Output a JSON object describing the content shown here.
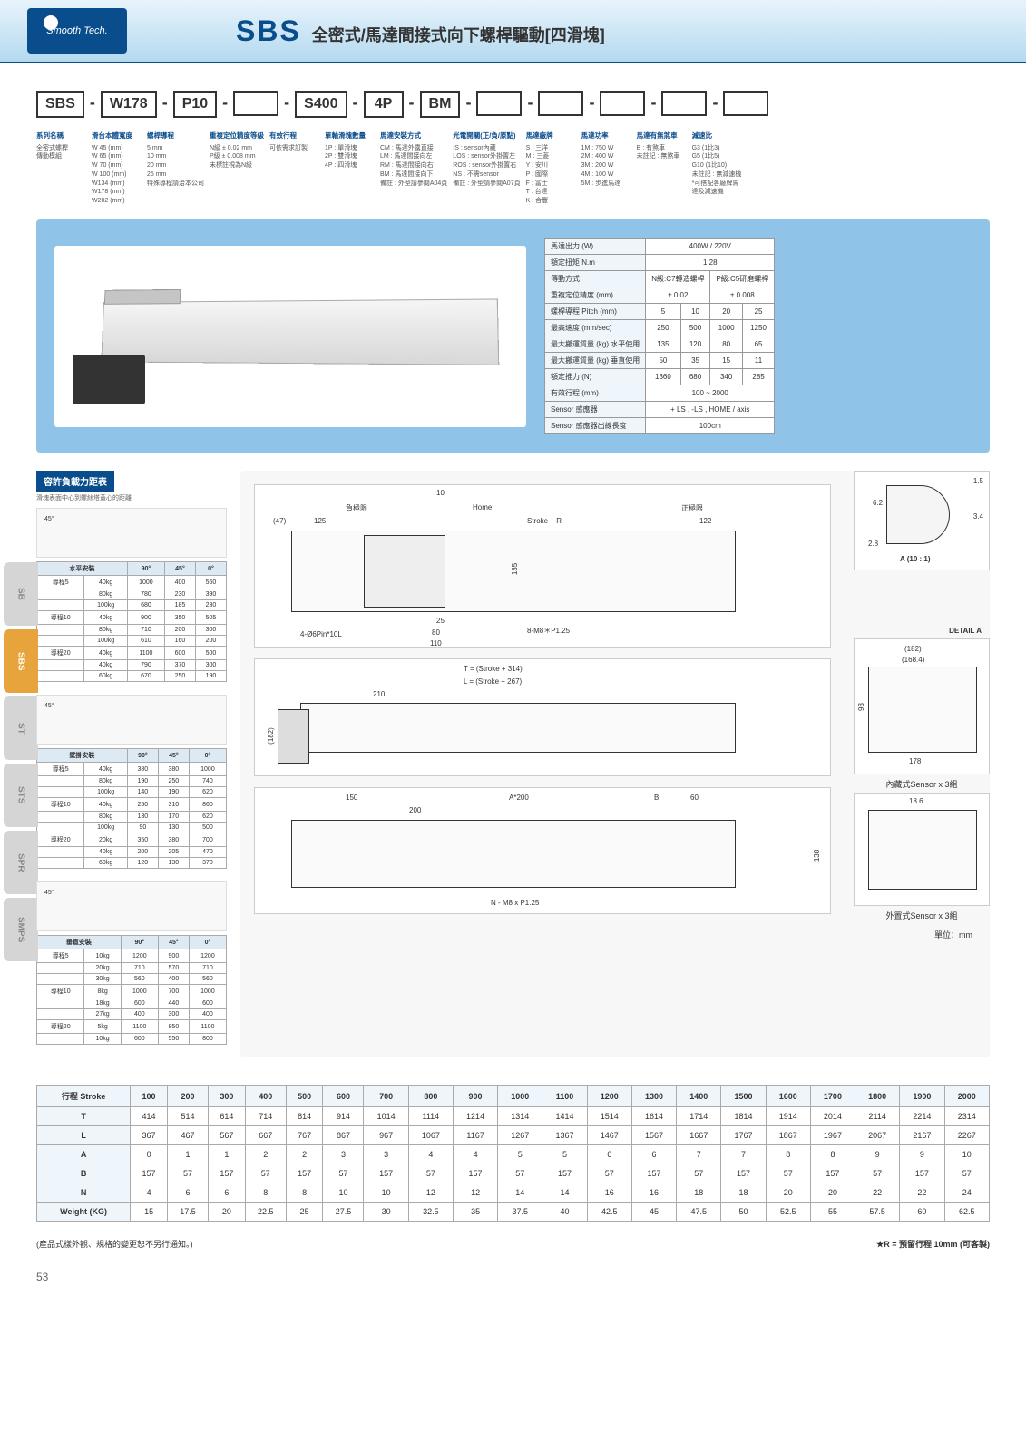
{
  "header": {
    "logo": "Smooth Tech.",
    "main": "SBS",
    "sub": "全密式/馬達間接式向下螺桿驅動[四滑塊]"
  },
  "config": {
    "boxes": [
      "SBS",
      "W178",
      "P10",
      "",
      "S400",
      "4P",
      "BM",
      "",
      "",
      "",
      "",
      ""
    ],
    "cols": [
      {
        "h": "系列名稱",
        "items": [
          "全密式螺桿",
          "傳動模組"
        ]
      },
      {
        "h": "滑台本體寬度",
        "items": [
          "W 45 (mm)",
          "W 65 (mm)",
          "W 70 (mm)",
          "W 100 (mm)",
          "W134 (mm)",
          "W178 (mm)",
          "W202 (mm)"
        ]
      },
      {
        "h": "螺桿導程",
        "items": [
          "5 mm",
          "10 mm",
          "20 mm",
          "25 mm",
          "特殊導程請洽本公司"
        ]
      },
      {
        "h": "重複定位精度等級",
        "items": [
          "N級 ± 0.02 mm",
          "P級 ± 0.008 mm",
          "未標註視為N級"
        ]
      },
      {
        "h": "有效行程",
        "items": [
          "可依需求訂製"
        ]
      },
      {
        "h": "單軸滑塊數量",
        "items": [
          "1P : 單滑塊",
          "2P : 雙滑塊",
          "4P : 四滑塊"
        ]
      },
      {
        "h": "馬達安裝方式",
        "items": [
          "CM : 馬達外露直接",
          "LM : 馬達間接向左",
          "RM : 馬達間接向右",
          "BM : 馬達間接向下",
          "備註 : 外型請參閱A04頁"
        ]
      },
      {
        "h": "光電開關(正/負/原點)",
        "items": [
          "IS : sensor內藏",
          "LOS : sensor外掛置左",
          "ROS : sensor外掛置右",
          "NS : 不需sensor",
          "備註 : 外型請參閱A07頁"
        ]
      },
      {
        "h": "馬達廠牌",
        "items": [
          "S : 三洋",
          "M : 三菱",
          "Y : 安川",
          "P : 國際",
          "F : 富士",
          "T : 台達",
          "K : 合豐"
        ]
      },
      {
        "h": "馬達功率",
        "items": [
          "1M : 750 W",
          "2M : 400 W",
          "3M : 200 W",
          "4M : 100 W",
          "5M : 步進馬達"
        ]
      },
      {
        "h": "馬達有無煞車",
        "items": [
          "B : 有煞車",
          "未註記 : 無煞車"
        ]
      },
      {
        "h": "減速比",
        "items": [
          "G3 (1比3)",
          "G5 (1比5)",
          "G10 (1比10)",
          "未註記 : 無減速機",
          "*可搭配各廠牌馬",
          "達及減速機"
        ]
      }
    ]
  },
  "spec": {
    "rows": [
      {
        "h": "馬達出力 (W)",
        "c": [
          "400W / 220V"
        ],
        "span": 4
      },
      {
        "h": "額定扭矩 N.m",
        "c": [
          "1.28"
        ],
        "span": 4
      },
      {
        "h": "傳動方式",
        "c": [
          "N級:C7轉造螺桿",
          "P級:C5研磨螺桿"
        ],
        "spans": [
          2,
          2
        ]
      },
      {
        "h": "重複定位精度 (mm)",
        "c": [
          "± 0.02",
          "± 0.008"
        ],
        "spans": [
          2,
          2
        ]
      },
      {
        "h": "螺桿導程 Pitch (mm)",
        "c": [
          "5",
          "10",
          "20",
          "25"
        ]
      },
      {
        "h": "最高速度 (mm/sec)",
        "c": [
          "250",
          "500",
          "1000",
          "1250"
        ]
      },
      {
        "h": "最大搬運質量 (kg) 水平使用",
        "c": [
          "135",
          "120",
          "80",
          "65"
        ]
      },
      {
        "h": "最大搬運質量 (kg) 垂直使用",
        "c": [
          "50",
          "35",
          "15",
          "11"
        ]
      },
      {
        "h": "額定推力 (N)",
        "c": [
          "1360",
          "680",
          "340",
          "285"
        ]
      },
      {
        "h": "有效行程 (mm)",
        "c": [
          "100 ~ 2000"
        ],
        "span": 4
      },
      {
        "h": "Sensor 感應器",
        "c": [
          "+ LS , -LS , HOME / axis"
        ],
        "span": 4
      },
      {
        "h": "Sensor 感應器出線長度",
        "c": [
          "100cm"
        ],
        "span": 4
      }
    ]
  },
  "load": {
    "title": "容許負載力距表",
    "sub": "滑塊表面中心到螺絲塔蓋心的距離",
    "unit": "單位：mm"
  },
  "mini": [
    {
      "h": "水平安裝",
      "cols": [
        "90°",
        "45°",
        "0°"
      ],
      "rows": [
        [
          "導程5",
          "40kg",
          "1000",
          "400",
          "560"
        ],
        [
          "",
          "80kg",
          "780",
          "230",
          "390"
        ],
        [
          "",
          "100kg",
          "680",
          "185",
          "230"
        ],
        [
          "導程10",
          "40kg",
          "900",
          "350",
          "505"
        ],
        [
          "",
          "80kg",
          "710",
          "200",
          "300"
        ],
        [
          "",
          "100kg",
          "610",
          "160",
          "200"
        ],
        [
          "導程20",
          "40kg",
          "1100",
          "600",
          "500"
        ],
        [
          "",
          "40kg",
          "790",
          "370",
          "300"
        ],
        [
          "",
          "60kg",
          "670",
          "250",
          "190"
        ]
      ]
    },
    {
      "h": "壁掛安裝",
      "cols": [
        "90°",
        "45°",
        "0°"
      ],
      "rows": [
        [
          "導程5",
          "40kg",
          "380",
          "380",
          "1000"
        ],
        [
          "",
          "80kg",
          "190",
          "250",
          "740"
        ],
        [
          "",
          "100kg",
          "140",
          "190",
          "620"
        ],
        [
          "導程10",
          "40kg",
          "250",
          "310",
          "860"
        ],
        [
          "",
          "80kg",
          "130",
          "170",
          "620"
        ],
        [
          "",
          "100kg",
          "90",
          "130",
          "500"
        ],
        [
          "導程20",
          "20kg",
          "350",
          "380",
          "700"
        ],
        [
          "",
          "40kg",
          "200",
          "205",
          "470"
        ],
        [
          "",
          "60kg",
          "120",
          "130",
          "370"
        ]
      ]
    },
    {
      "h": "垂直安裝",
      "cols": [
        "90°",
        "45°",
        "0°"
      ],
      "rows": [
        [
          "導程5",
          "10kg",
          "1200",
          "900",
          "1200"
        ],
        [
          "",
          "20kg",
          "710",
          "570",
          "710"
        ],
        [
          "",
          "30kg",
          "560",
          "400",
          "560"
        ],
        [
          "導程10",
          "8kg",
          "1000",
          "700",
          "1000"
        ],
        [
          "",
          "18kg",
          "600",
          "440",
          "600"
        ],
        [
          "",
          "27kg",
          "400",
          "300",
          "400"
        ],
        [
          "導程20",
          "5kg",
          "1100",
          "850",
          "1100"
        ],
        [
          "",
          "10kg",
          "600",
          "550",
          "800"
        ]
      ]
    }
  ],
  "tabs": [
    "SB",
    "SBS",
    "ST",
    "STS",
    "SPR",
    "SMPS"
  ],
  "dwg": {
    "top": {
      "home": "Home",
      "neg": "負極限",
      "pos": "正極限",
      "d1": "10",
      "d2": "(47)",
      "d3": "125",
      "d4": "Stroke + R",
      "d5": "122",
      "d6": "135",
      "d7": "25",
      "d8": "80",
      "d9": "110",
      "h1": "4-Ø6Pin*10L",
      "h2": "8-M8＊P1.25"
    },
    "mid": {
      "t": "T = (Stroke + 314)",
      "l": "L = (Stroke + 267)",
      "d1": "210",
      "d2": "(182)"
    },
    "bot": {
      "d1": "150",
      "d2": "A*200",
      "d3": "B",
      "d4": "60",
      "d5": "200",
      "d6": "138",
      "h": "N - M8 x P1.25"
    },
    "detA": {
      "t": "A (10 : 1)",
      "d1": "1.5",
      "d2": "6.2",
      "d3": "3.4",
      "d4": "2.8"
    },
    "detB": {
      "t": "DETAIL A",
      "d1": "(182)",
      "d2": "(168.4)",
      "d3": "93",
      "d4": "178",
      "s": "內藏式Sensor x 3組"
    },
    "detC": {
      "d1": "18.6",
      "s": "外置式Sensor x 3組"
    }
  },
  "unit": "單位：mm",
  "btm": {
    "h": [
      "行程 Stroke",
      "100",
      "200",
      "300",
      "400",
      "500",
      "600",
      "700",
      "800",
      "900",
      "1000",
      "1100",
      "1200",
      "1300",
      "1400",
      "1500",
      "1600",
      "1700",
      "1800",
      "1900",
      "2000"
    ],
    "rows": [
      [
        "T",
        "414",
        "514",
        "614",
        "714",
        "814",
        "914",
        "1014",
        "1114",
        "1214",
        "1314",
        "1414",
        "1514",
        "1614",
        "1714",
        "1814",
        "1914",
        "2014",
        "2114",
        "2214",
        "2314"
      ],
      [
        "L",
        "367",
        "467",
        "567",
        "667",
        "767",
        "867",
        "967",
        "1067",
        "1167",
        "1267",
        "1367",
        "1467",
        "1567",
        "1667",
        "1767",
        "1867",
        "1967",
        "2067",
        "2167",
        "2267"
      ],
      [
        "A",
        "0",
        "1",
        "1",
        "2",
        "2",
        "3",
        "3",
        "4",
        "4",
        "5",
        "5",
        "6",
        "6",
        "7",
        "7",
        "8",
        "8",
        "9",
        "9",
        "10"
      ],
      [
        "B",
        "157",
        "57",
        "157",
        "57",
        "157",
        "57",
        "157",
        "57",
        "157",
        "57",
        "157",
        "57",
        "157",
        "57",
        "157",
        "57",
        "157",
        "57",
        "157",
        "57"
      ],
      [
        "N",
        "4",
        "6",
        "6",
        "8",
        "8",
        "10",
        "10",
        "12",
        "12",
        "14",
        "14",
        "16",
        "16",
        "18",
        "18",
        "20",
        "20",
        "22",
        "22",
        "24"
      ],
      [
        "Weight (KG)",
        "15",
        "17.5",
        "20",
        "22.5",
        "25",
        "27.5",
        "30",
        "32.5",
        "35",
        "37.5",
        "40",
        "42.5",
        "45",
        "47.5",
        "50",
        "52.5",
        "55",
        "57.5",
        "60",
        "62.5"
      ]
    ]
  },
  "ftr": {
    "l": "(產品式樣外觀、規格的變更恕不另行通知。)",
    "r": "★R = 預留行程 10mm (可客製)"
  },
  "page": "53"
}
